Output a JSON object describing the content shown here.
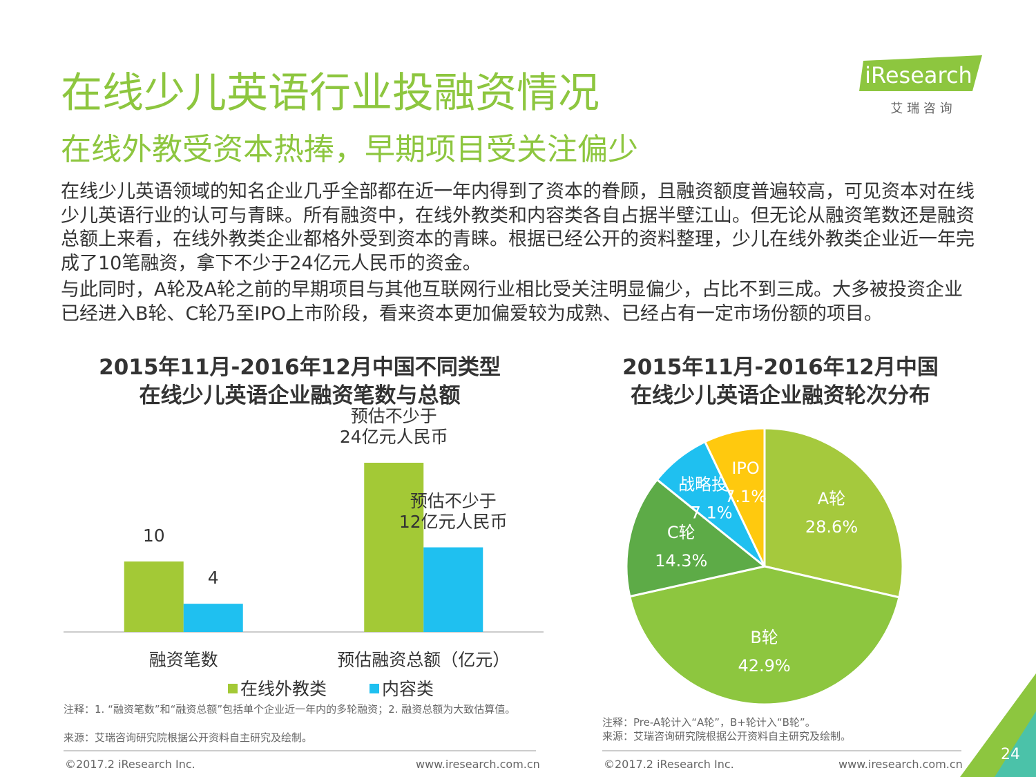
{
  "header": {
    "title": "在线少儿英语行业投融资情况",
    "subtitle": "在线外教受资本热捧，早期项目受关注偏少"
  },
  "logo": {
    "brand": "iResearch",
    "tagline": "艾 瑞 咨 询"
  },
  "body": [
    "在线少儿英语领域的知名企业几乎全部都在近一年内得到了资本的眷顾，且融资额度普遍较高，可见资本对在线少儿英语行业的认可与青睐。所有融资中，在线外教类和内容类各自占据半壁江山。但无论从融资笔数还是融资总额上来看，在线外教类企业都格外受到资本的青睐。根据已经公开的资料整理，少儿在线外教类企业近一年完成了10笔融资，拿下不少于24亿元人民币的资金。",
    "与此同时，A轮及A轮之前的早期项目与其他互联网行业相比受关注明显偏少，占比不到三成。大多被投资企业已经进入B轮、C轮乃至IPO上市阶段，看来资本更加偏爱较为成熟、已经占有一定市场份额的项目。"
  ],
  "chart_data": [
    {
      "type": "bar",
      "title": "2015年11月-2016年12月中国不同类型\n在线少儿英语企业融资笔数与总额",
      "categories": [
        "融资笔数",
        "预估融资总额（亿元）"
      ],
      "series": [
        {
          "name": "在线外教类",
          "color": "#a3c936",
          "values": [
            10,
            24
          ],
          "value_labels": [
            "10",
            "预估不少于\n24亿元人民币"
          ]
        },
        {
          "name": "内容类",
          "color": "#1fc0f0",
          "values": [
            4,
            12
          ],
          "value_labels": [
            "4",
            "预估不少于\n12亿元人民币"
          ]
        }
      ],
      "notes": [
        "注释：1. “融资笔数”和“融资总额”包括单个企业近一年内的多轮融资；2. 融资总额为大致估算值。",
        "来源：艾瑞咨询研究院根据公开资料自主研究及绘制。"
      ]
    },
    {
      "type": "pie",
      "title": "2015年11月-2016年12月中国\n在线少儿英语企业融资轮次分布",
      "categories": [
        "A轮",
        "B轮",
        "C轮",
        "战略投资",
        "IPO"
      ],
      "values": [
        28.6,
        42.9,
        14.3,
        7.1,
        7.1
      ],
      "value_labels": [
        "28.6%",
        "42.9%",
        "14.3%",
        "7.1%",
        "7.1%"
      ],
      "colors": [
        "#a5c93d",
        "#8dc63f",
        "#5dab47",
        "#1fc0f0",
        "#ffc90e"
      ],
      "notes": [
        "注释：Pre-A轮计入“A轮”，B+轮计入“B轮”。",
        "来源：艾瑞咨询研究院根据公开资料自主研究及绘制。"
      ]
    }
  ],
  "footer": {
    "copyright": "©2017.2 iResearch Inc.",
    "website": "www.iresearch.com.cn",
    "page": "24"
  }
}
